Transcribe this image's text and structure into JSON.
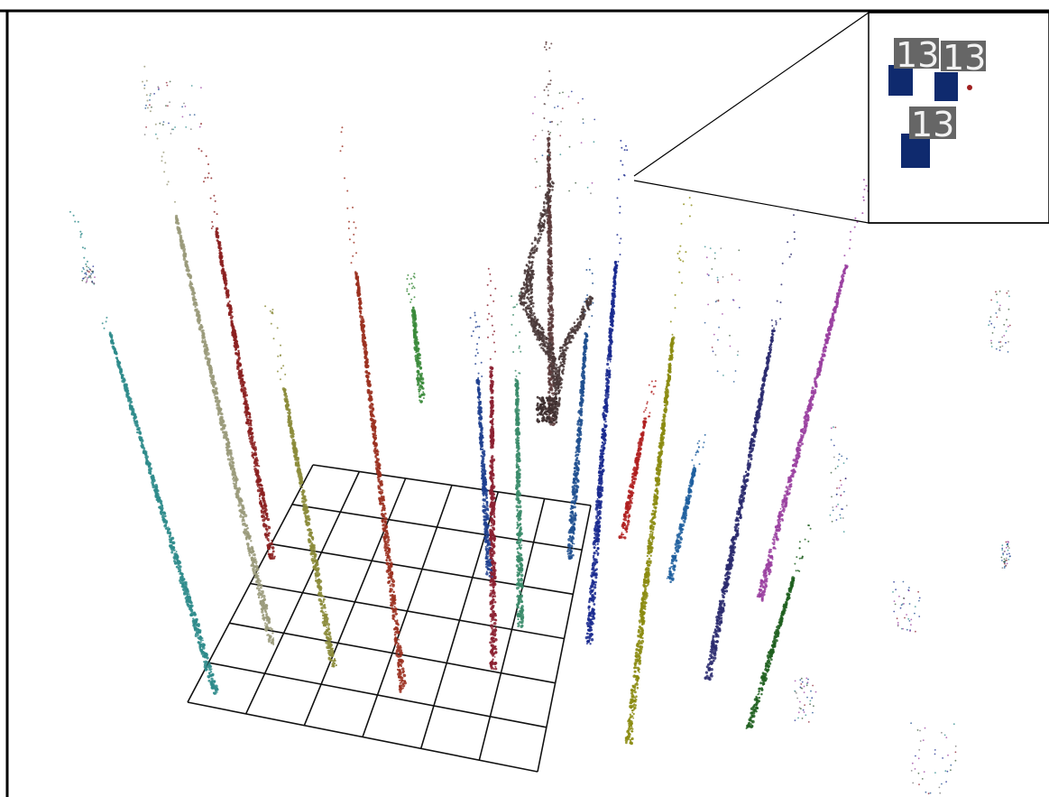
{
  "view": {
    "background": "#ffffff",
    "border_color": "#000000",
    "grid_color": "#111111",
    "grid_divisions": 6
  },
  "inset": {
    "labels": [
      "13",
      "13",
      "13"
    ],
    "label_bg": "#666666",
    "box_color": "#0f2a6e"
  },
  "stems": [
    {
      "color": "#2e8b8b"
    },
    {
      "color": "#9a9a7a"
    },
    {
      "color": "#8b2020"
    },
    {
      "color": "#8b8b3a"
    },
    {
      "color": "#9b3020"
    },
    {
      "color": "#3a8a3a"
    },
    {
      "color": "#1f3f8f"
    },
    {
      "color": "#8b2030"
    },
    {
      "color": "#3a8b6a"
    },
    {
      "color": "#1f4f8f"
    },
    {
      "color": "#1a2a8f"
    },
    {
      "color": "#8b8b10"
    },
    {
      "color": "#b02020"
    },
    {
      "color": "#1f5f9f"
    },
    {
      "color": "#2a2a6f"
    },
    {
      "color": "#9a40a0"
    },
    {
      "color": "#1f5f1f"
    },
    {
      "color": "#5a3a3a"
    }
  ]
}
